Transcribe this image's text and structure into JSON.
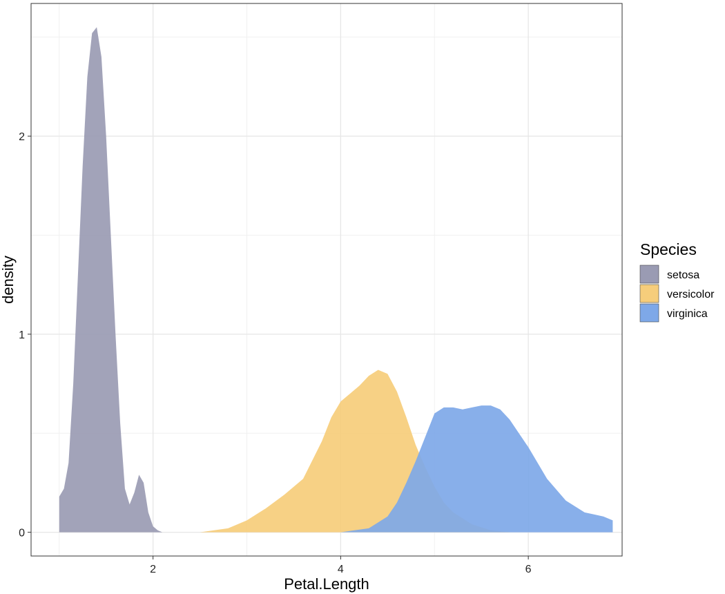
{
  "chart_data": {
    "type": "area",
    "xlabel": "Petal.Length",
    "ylabel": "density",
    "xlim": [
      0.7,
      7.0
    ],
    "ylim": [
      -0.12,
      2.67
    ],
    "x_ticks": [
      2,
      4,
      6
    ],
    "y_ticks": [
      0,
      1,
      2
    ],
    "grid": true,
    "legend": {
      "title": "Species",
      "position": "right"
    },
    "series": [
      {
        "name": "setosa",
        "color": "#9a9bb3",
        "x": [
          1.0,
          1.05,
          1.1,
          1.15,
          1.2,
          1.25,
          1.3,
          1.35,
          1.4,
          1.45,
          1.5,
          1.55,
          1.6,
          1.65,
          1.7,
          1.75,
          1.8,
          1.85,
          1.9,
          1.95,
          2.0,
          2.05,
          2.1
        ],
        "y": [
          0.18,
          0.22,
          0.35,
          0.75,
          1.3,
          1.85,
          2.3,
          2.52,
          2.55,
          2.4,
          2.0,
          1.5,
          1.0,
          0.55,
          0.22,
          0.14,
          0.2,
          0.29,
          0.25,
          0.1,
          0.03,
          0.01,
          0.0
        ]
      },
      {
        "name": "versicolor",
        "color": "#f6cd7b",
        "x": [
          2.5,
          2.8,
          3.0,
          3.2,
          3.4,
          3.6,
          3.8,
          3.9,
          4.0,
          4.1,
          4.2,
          4.3,
          4.4,
          4.5,
          4.6,
          4.7,
          4.8,
          4.9,
          5.0,
          5.1,
          5.2,
          5.4,
          5.6,
          5.8
        ],
        "y": [
          0.0,
          0.02,
          0.06,
          0.12,
          0.19,
          0.27,
          0.46,
          0.58,
          0.66,
          0.7,
          0.74,
          0.79,
          0.82,
          0.8,
          0.71,
          0.58,
          0.44,
          0.33,
          0.23,
          0.15,
          0.1,
          0.04,
          0.01,
          0.0
        ]
      },
      {
        "name": "virginica",
        "color": "#7ea8e8",
        "x": [
          4.0,
          4.3,
          4.5,
          4.6,
          4.7,
          4.8,
          4.9,
          5.0,
          5.1,
          5.2,
          5.3,
          5.4,
          5.5,
          5.6,
          5.7,
          5.8,
          5.9,
          6.0,
          6.1,
          6.2,
          6.4,
          6.6,
          6.7,
          6.8,
          6.9
        ],
        "y": [
          0.0,
          0.02,
          0.08,
          0.15,
          0.25,
          0.36,
          0.48,
          0.6,
          0.63,
          0.63,
          0.62,
          0.63,
          0.64,
          0.64,
          0.62,
          0.57,
          0.5,
          0.43,
          0.35,
          0.27,
          0.16,
          0.1,
          0.09,
          0.08,
          0.06
        ]
      }
    ]
  }
}
